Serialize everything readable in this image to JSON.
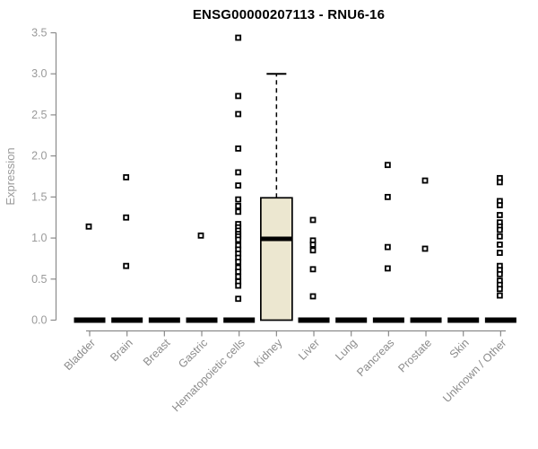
{
  "chart_data": {
    "type": "boxplot",
    "title": "ENSG00000207113 - RNU6-16",
    "ylabel": "Expression",
    "ylim": [
      0,
      3.5
    ],
    "ytick_values": [
      0,
      0.5,
      1,
      1.5,
      2,
      2.5,
      3,
      3.5
    ],
    "ytick_labels": [
      "0.0",
      "0.5",
      "1.0",
      "1.5",
      "2.0",
      "2.5",
      "3.0",
      "3.5"
    ],
    "categories": [
      "Bladder",
      "Brain",
      "Breast",
      "Gastric",
      "Hematopoietic cells",
      "Kidney",
      "Liver",
      "Lung",
      "Pancreas",
      "Prostate",
      "Skin",
      "Unknown / Other"
    ],
    "grid": false,
    "legend": "none",
    "groups": [
      {
        "name": "Bladder",
        "points": [
          1.14
        ],
        "box": {
          "q1": 0,
          "median": 0,
          "q3": 0,
          "whisker_low": 0,
          "whisker_high": 0
        }
      },
      {
        "name": "Brain",
        "points": [
          1.74,
          1.25,
          0.66
        ],
        "box": {
          "q1": 0,
          "median": 0,
          "q3": 0,
          "whisker_low": 0,
          "whisker_high": 0
        }
      },
      {
        "name": "Breast",
        "points": [],
        "box": {
          "q1": 0,
          "median": 0,
          "q3": 0,
          "whisker_low": 0,
          "whisker_high": 0
        }
      },
      {
        "name": "Gastric",
        "points": [
          1.03
        ],
        "box": {
          "q1": 0,
          "median": 0,
          "q3": 0,
          "whisker_low": 0,
          "whisker_high": 0
        }
      },
      {
        "name": "Hematopoietic cells",
        "points": [
          3.44,
          2.73,
          2.51,
          2.09,
          1.8,
          1.64,
          1.47,
          1.39,
          1.32,
          1.17,
          1.13,
          1.09,
          1.05,
          1.02,
          0.98,
          0.91,
          0.86,
          0.81,
          0.76,
          0.71,
          0.64,
          0.59,
          0.53,
          0.47,
          0.42,
          0.26
        ],
        "box": {
          "q1": 0,
          "median": 0,
          "q3": 0,
          "whisker_low": 0,
          "whisker_high": 0
        }
      },
      {
        "name": "Kidney",
        "points": [],
        "box": {
          "q1": 0,
          "median": 0.99,
          "q3": 1.49,
          "whisker_low": 0,
          "whisker_high": 3.0
        }
      },
      {
        "name": "Liver",
        "points": [
          1.22,
          0.97,
          0.92,
          0.85,
          0.62,
          0.29
        ],
        "box": {
          "q1": 0,
          "median": 0,
          "q3": 0,
          "whisker_low": 0,
          "whisker_high": 0
        }
      },
      {
        "name": "Lung",
        "points": [],
        "box": {
          "q1": 0,
          "median": 0,
          "q3": 0,
          "whisker_low": 0,
          "whisker_high": 0
        }
      },
      {
        "name": "Pancreas",
        "points": [
          1.89,
          1.5,
          0.89,
          0.63
        ],
        "box": {
          "q1": 0,
          "median": 0,
          "q3": 0,
          "whisker_low": 0,
          "whisker_high": 0
        }
      },
      {
        "name": "Prostate",
        "points": [
          1.7,
          0.87
        ],
        "box": {
          "q1": 0,
          "median": 0,
          "q3": 0,
          "whisker_low": 0,
          "whisker_high": 0
        }
      },
      {
        "name": "Skin",
        "points": [],
        "box": {
          "q1": 0,
          "median": 0,
          "q3": 0,
          "whisker_low": 0,
          "whisker_high": 0
        }
      },
      {
        "name": "Unknown / Other",
        "points": [
          1.73,
          1.68,
          1.45,
          1.4,
          1.28,
          1.19,
          1.14,
          1.1,
          1.02,
          0.92,
          0.82,
          0.66,
          0.61,
          0.56,
          0.48,
          0.43,
          0.38,
          0.3
        ],
        "box": {
          "q1": 0,
          "median": 0,
          "q3": 0,
          "whisker_low": 0,
          "whisker_high": 0
        }
      }
    ]
  },
  "colors": {
    "background": "#ffffff",
    "title": "#000000",
    "axis_line": "#8a8a8a",
    "tick_label": "#9a9a9a",
    "category_label": "#8c8c8c",
    "axis_title": "#9a9a9a",
    "point": "#000000",
    "box_fill": "#ece7d0",
    "box_border": "#000000",
    "median": "#000000"
  }
}
